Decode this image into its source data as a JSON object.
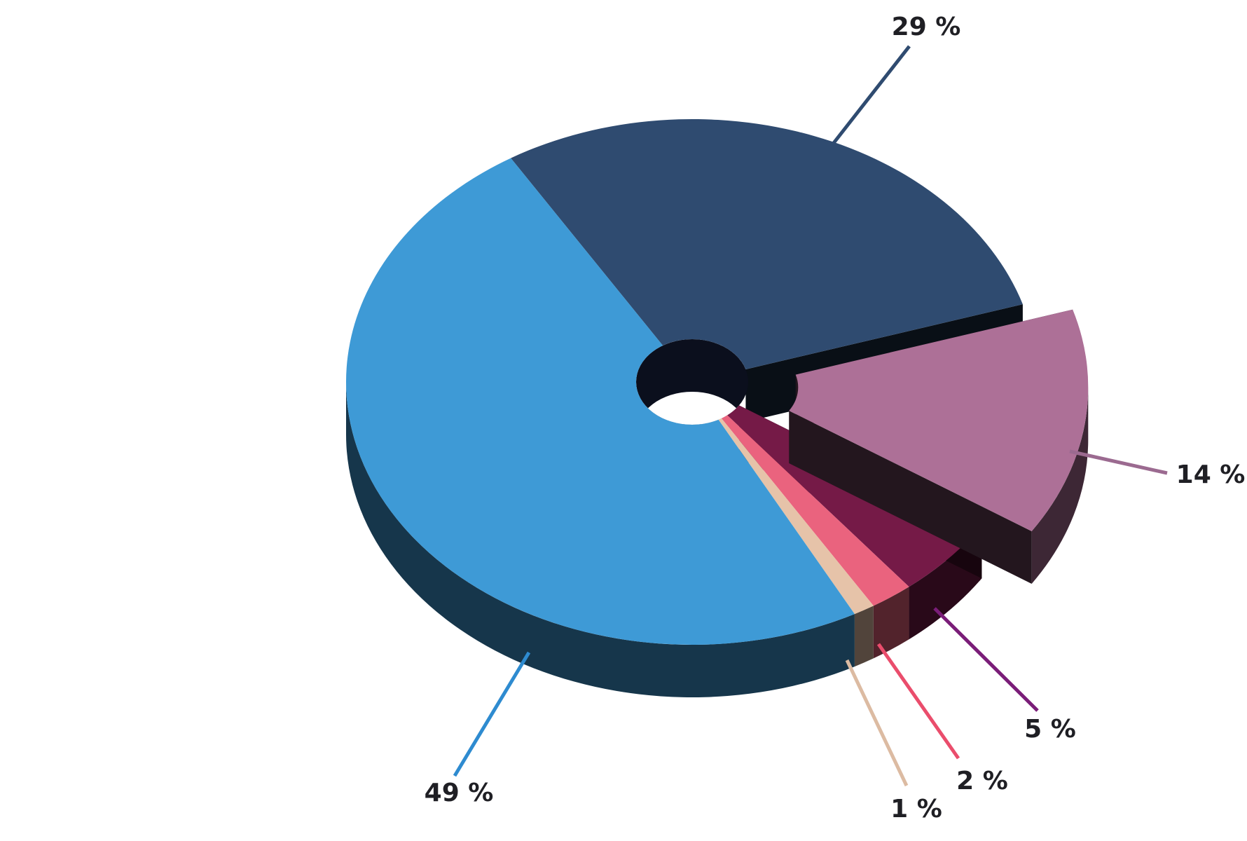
{
  "chart_data": {
    "type": "pie",
    "values": [
      29,
      14,
      5,
      2,
      1,
      49
    ],
    "value_labels": [
      "29 %",
      "14 %",
      "5 %",
      "2 %",
      "1 %",
      "49 %"
    ],
    "colors": [
      "#2f4b70",
      "#ad7097",
      "#751a47",
      "#ea637e",
      "#e6c3a9",
      "#3e9ad6"
    ],
    "exploded": [
      false,
      true,
      false,
      false,
      false,
      false
    ]
  }
}
